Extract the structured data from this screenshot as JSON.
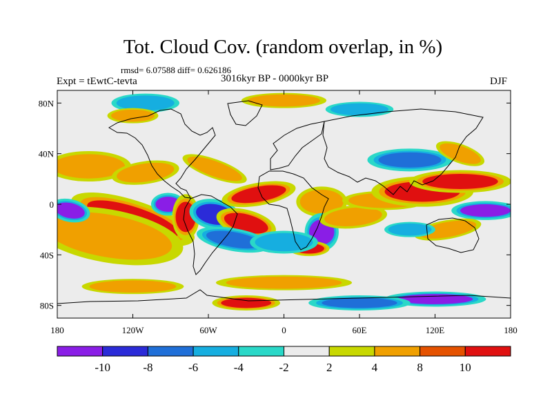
{
  "title": "Tot. Cloud Cov. (random overlap, in %)",
  "stats_line": "rmsd= 6.07588 diff= 0.626186",
  "experiment_label": "Expt = tEwtC-tevta",
  "period_label": "3016kyr BP - 0000kyr BP",
  "season_label": "DJF",
  "axes": {
    "y_ticks": [
      {
        "label": "80N",
        "lat": 80
      },
      {
        "label": "40N",
        "lat": 40
      },
      {
        "label": "0",
        "lat": 0
      },
      {
        "label": "40S",
        "lat": -40
      },
      {
        "label": "80S",
        "lat": -80
      }
    ],
    "x_ticks": [
      {
        "label": "180",
        "lon": -180
      },
      {
        "label": "120W",
        "lon": -120
      },
      {
        "label": "60W",
        "lon": -60
      },
      {
        "label": "0",
        "lon": 0
      },
      {
        "label": "60E",
        "lon": 60
      },
      {
        "label": "120E",
        "lon": 120
      },
      {
        "label": "180",
        "lon": 180
      }
    ],
    "lat_range": [
      -90,
      90
    ],
    "lon_range": [
      -180,
      180
    ]
  },
  "colorbar": {
    "labels": [
      "-10",
      "-8",
      "-6",
      "-4",
      "-2",
      "2",
      "4",
      "8",
      "10"
    ],
    "colors": [
      "#8a1ee6",
      "#2b2bd8",
      "#1f6fd8",
      "#16aee0",
      "#2ad8c8",
      "#ececec",
      "#c8d800",
      "#f0a000",
      "#e55200",
      "#e01010"
    ]
  },
  "palette": {
    "background": "#ececec",
    "purple": "#8a1ee6",
    "blue": "#2b2bd8",
    "midblue": "#1f6fd8",
    "lightblue": "#16aee0",
    "cyan": "#2ad8c8",
    "yellow": "#c8d800",
    "orange": "#f0a000",
    "darkorange": "#e55200",
    "red": "#e01010"
  },
  "anomaly_features": [
    {
      "lon": -120,
      "lat": -12,
      "value": 10,
      "rx": 38,
      "ry": 10,
      "rot": 18
    },
    {
      "lon": -140,
      "lat": -25,
      "value": 8,
      "rx": 45,
      "ry": 14,
      "rot": 10
    },
    {
      "lon": -170,
      "lat": -5,
      "value": -10,
      "rx": 12,
      "ry": 6,
      "rot": 12
    },
    {
      "lon": -155,
      "lat": 30,
      "value": 8,
      "rx": 25,
      "ry": 8,
      "rot": 0
    },
    {
      "lon": -110,
      "lat": 25,
      "value": 8,
      "rx": 20,
      "ry": 6,
      "rot": -8
    },
    {
      "lon": -55,
      "lat": 28,
      "value": 8,
      "rx": 20,
      "ry": 5,
      "rot": 20
    },
    {
      "lon": -92,
      "lat": 0,
      "value": -10,
      "rx": 10,
      "ry": 6,
      "rot": 0
    },
    {
      "lon": -78,
      "lat": -10,
      "value": 10,
      "rx": 8,
      "ry": 12,
      "rot": 0
    },
    {
      "lon": -55,
      "lat": -8,
      "value": -8,
      "rx": 15,
      "ry": 8,
      "rot": 10
    },
    {
      "lon": -30,
      "lat": -15,
      "value": 10,
      "rx": 18,
      "ry": 7,
      "rot": 15
    },
    {
      "lon": -40,
      "lat": -28,
      "value": -6,
      "rx": 22,
      "ry": 6,
      "rot": 10
    },
    {
      "lon": -20,
      "lat": 8,
      "value": 10,
      "rx": 22,
      "ry": 6,
      "rot": -10
    },
    {
      "lon": 30,
      "lat": 2,
      "value": 8,
      "rx": 15,
      "ry": 8,
      "rot": 0
    },
    {
      "lon": 30,
      "lat": -22,
      "value": -10,
      "rx": 10,
      "ry": 10,
      "rot": 0
    },
    {
      "lon": 20,
      "lat": -35,
      "value": 10,
      "rx": 12,
      "ry": 4,
      "rot": 0
    },
    {
      "lon": 0,
      "lat": -30,
      "value": -4,
      "rx": 20,
      "ry": 6,
      "rot": 0
    },
    {
      "lon": 55,
      "lat": -10,
      "value": 8,
      "rx": 20,
      "ry": 6,
      "rot": -5
    },
    {
      "lon": 80,
      "lat": 3,
      "value": 8,
      "rx": 25,
      "ry": 5,
      "rot": 0
    },
    {
      "lon": 110,
      "lat": 10,
      "value": 10,
      "rx": 30,
      "ry": 8,
      "rot": 0
    },
    {
      "lon": 140,
      "lat": 18,
      "value": 10,
      "rx": 30,
      "ry": 6,
      "rot": 0
    },
    {
      "lon": 160,
      "lat": -5,
      "value": -10,
      "rx": 20,
      "ry": 5,
      "rot": 0
    },
    {
      "lon": 100,
      "lat": 35,
      "value": -6,
      "rx": 25,
      "ry": 6,
      "rot": 0
    },
    {
      "lon": 140,
      "lat": 40,
      "value": 8,
      "rx": 15,
      "ry": 5,
      "rot": 20
    },
    {
      "lon": 130,
      "lat": -20,
      "value": 8,
      "rx": 20,
      "ry": 5,
      "rot": -10
    },
    {
      "lon": 100,
      "lat": -20,
      "value": -4,
      "rx": 15,
      "ry": 4,
      "rot": 0
    },
    {
      "lon": 0,
      "lat": 82,
      "value": 8,
      "rx": 25,
      "ry": 4,
      "rot": 0
    },
    {
      "lon": -110,
      "lat": 80,
      "value": -4,
      "rx": 20,
      "ry": 5,
      "rot": 0
    },
    {
      "lon": 60,
      "lat": 75,
      "value": -4,
      "rx": 20,
      "ry": 4,
      "rot": 0
    },
    {
      "lon": -120,
      "lat": 70,
      "value": 8,
      "rx": 15,
      "ry": 4,
      "rot": 0
    },
    {
      "lon": 0,
      "lat": -62,
      "value": 8,
      "rx": 40,
      "ry": 4,
      "rot": 0
    },
    {
      "lon": -120,
      "lat": -65,
      "value": 4,
      "rx": 30,
      "ry": 4,
      "rot": 0
    },
    {
      "lon": 120,
      "lat": -75,
      "value": -10,
      "rx": 30,
      "ry": 4,
      "rot": 0
    },
    {
      "lon": -30,
      "lat": -78,
      "value": 10,
      "rx": 20,
      "ry": 4,
      "rot": 0
    },
    {
      "lon": 60,
      "lat": -78,
      "value": -6,
      "rx": 30,
      "ry": 4,
      "rot": 0
    }
  ]
}
